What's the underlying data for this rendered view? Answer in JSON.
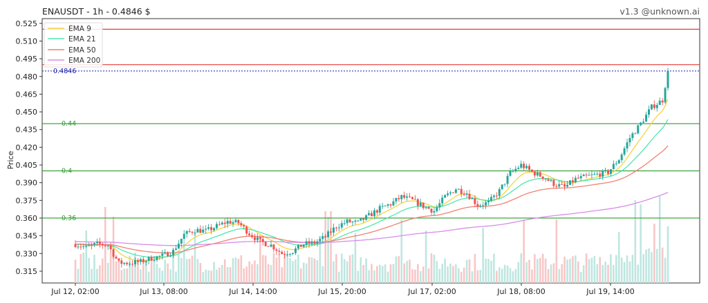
{
  "header": {
    "title": "ENAUSDT - 1h - 0.4846 $",
    "version": "v1.3 @unknown.ai"
  },
  "chart_data": {
    "type": "candlestick",
    "ylabel": "Price",
    "ylim": [
      0.305,
      0.529
    ],
    "yticks": [
      "0.315",
      "0.330",
      "0.345",
      "0.360",
      "0.375",
      "0.390",
      "0.405",
      "0.420",
      "0.435",
      "0.450",
      "0.465",
      "0.480",
      "0.495",
      "0.510",
      "0.525"
    ],
    "xticks": [
      "Jul 12, 02:00",
      "Jul 13, 08:00",
      "Jul 14, 14:00",
      "Jul 15, 20:00",
      "Jul 17, 02:00",
      "Jul 18, 08:00",
      "Jul 19, 14:00"
    ],
    "last_price": 0.4846,
    "last_price_label": "0.4846",
    "legend": {
      "position": "top-left",
      "entries": [
        {
          "name": "EMA 9",
          "color": "#f5d442"
        },
        {
          "name": "EMA 21",
          "color": "#4ee6b0"
        },
        {
          "name": "EMA 50",
          "color": "#f08070"
        },
        {
          "name": "EMA 200",
          "color": "#d88be8"
        }
      ]
    },
    "resistance_levels": [
      0.52,
      0.49
    ],
    "support_levels": [
      {
        "value": 0.44,
        "label": "0.44"
      },
      {
        "value": 0.4,
        "label": "0.4"
      },
      {
        "value": 0.36,
        "label": "0.36"
      }
    ],
    "colors": {
      "up": "#26a69a",
      "down": "#ef5350",
      "resistance": "#e53935",
      "support": "#2e9b2e",
      "price_line": "#1a1aa8",
      "vol_up": "#bfe6e0",
      "vol_down": "#f7c7c7"
    },
    "close_path": [
      [
        0,
        0.338
      ],
      [
        4,
        0.335
      ],
      [
        8,
        0.338
      ],
      [
        12,
        0.337
      ],
      [
        16,
        0.322
      ],
      [
        20,
        0.322
      ],
      [
        24,
        0.323
      ],
      [
        28,
        0.326
      ],
      [
        32,
        0.328
      ],
      [
        36,
        0.332
      ],
      [
        40,
        0.346
      ],
      [
        44,
        0.35
      ],
      [
        48,
        0.349
      ],
      [
        52,
        0.353
      ],
      [
        56,
        0.357
      ],
      [
        60,
        0.356
      ],
      [
        64,
        0.347
      ],
      [
        68,
        0.34
      ],
      [
        72,
        0.337
      ],
      [
        76,
        0.33
      ],
      [
        80,
        0.332
      ],
      [
        84,
        0.338
      ],
      [
        88,
        0.339
      ],
      [
        92,
        0.344
      ],
      [
        96,
        0.353
      ],
      [
        100,
        0.357
      ],
      [
        104,
        0.356
      ],
      [
        108,
        0.362
      ],
      [
        112,
        0.368
      ],
      [
        116,
        0.372
      ],
      [
        120,
        0.378
      ],
      [
        124,
        0.375
      ],
      [
        128,
        0.37
      ],
      [
        132,
        0.366
      ],
      [
        136,
        0.378
      ],
      [
        140,
        0.385
      ],
      [
        144,
        0.381
      ],
      [
        148,
        0.371
      ],
      [
        152,
        0.373
      ],
      [
        156,
        0.383
      ],
      [
        160,
        0.398
      ],
      [
        164,
        0.405
      ],
      [
        168,
        0.399
      ],
      [
        172,
        0.395
      ],
      [
        176,
        0.389
      ],
      [
        180,
        0.386
      ],
      [
        184,
        0.393
      ],
      [
        188,
        0.395
      ],
      [
        192,
        0.397
      ],
      [
        196,
        0.399
      ],
      [
        200,
        0.41
      ],
      [
        204,
        0.428
      ],
      [
        208,
        0.44
      ],
      [
        212,
        0.454
      ],
      [
        216,
        0.46
      ],
      [
        218,
        0.4846
      ]
    ]
  }
}
